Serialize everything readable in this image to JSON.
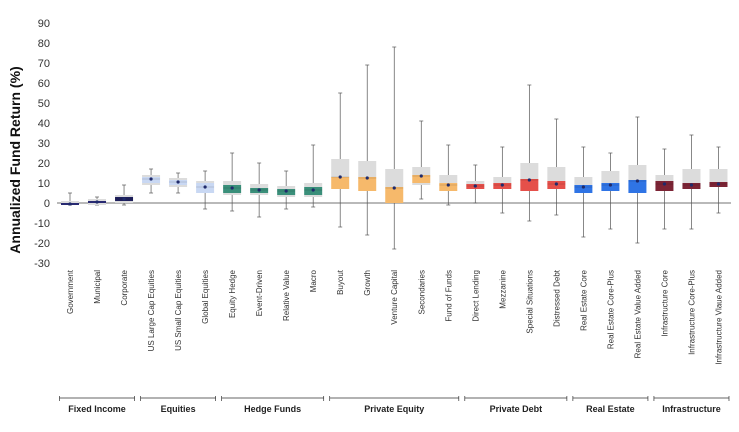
{
  "chart_data": {
    "type": "box",
    "ylabel": "Annualized Fund Return (%)",
    "ylim": [
      -30,
      90
    ],
    "yticks": [
      -30,
      -20,
      -10,
      0,
      10,
      20,
      30,
      40,
      50,
      60,
      70,
      80,
      90
    ],
    "grid": false,
    "categories": [
      {
        "name": "Government",
        "group": "Fixed Income",
        "color": "#2b2d7a",
        "min": -1,
        "lower_decile": -1,
        "q1": -1,
        "median": -0.5,
        "q3": 0,
        "upper_decile": 1,
        "max": 5,
        "mean": -0.5
      },
      {
        "name": "Municipal",
        "group": "Fixed Income",
        "color": "#2b2d7a",
        "min": -1,
        "lower_decile": -1,
        "q1": 0,
        "median": 0.5,
        "q3": 1,
        "upper_decile": 2,
        "max": 3,
        "mean": 0.5
      },
      {
        "name": "Corporate",
        "group": "Fixed Income",
        "color": "#1e1f5c",
        "min": -1,
        "lower_decile": 0,
        "q1": 1,
        "median": 2,
        "q3": 3,
        "upper_decile": 4,
        "max": 9,
        "mean": 2
      },
      {
        "name": "US Large Cap Equities",
        "group": "Equities",
        "color": "#c9d8f3",
        "min": 5,
        "lower_decile": 9,
        "q1": 10,
        "median": 12,
        "q3": 13,
        "upper_decile": 14,
        "max": 17,
        "mean": 12
      },
      {
        "name": "US Small Cap Equities",
        "group": "Equities",
        "color": "#c9d8f3",
        "min": 5,
        "lower_decile": 8,
        "q1": 9,
        "median": 10.5,
        "q3": 11.5,
        "upper_decile": 12.5,
        "max": 15,
        "mean": 10.5
      },
      {
        "name": "Global Equities",
        "group": "Equities",
        "color": "#c9d8f3",
        "min": -3,
        "lower_decile": 5,
        "q1": 5,
        "median": 8,
        "q3": 10,
        "upper_decile": 11,
        "max": 16,
        "mean": 8
      },
      {
        "name": "Equity Hedge",
        "group": "Hedge Funds",
        "color": "#3a8f7a",
        "min": -4,
        "lower_decile": 4,
        "q1": 5,
        "median": 7.5,
        "q3": 9,
        "upper_decile": 11,
        "max": 25,
        "mean": 7.5
      },
      {
        "name": "Event-Driven",
        "group": "Hedge Funds",
        "color": "#3a8f7a",
        "min": -7,
        "lower_decile": 4,
        "q1": 5,
        "median": 6.5,
        "q3": 7.5,
        "upper_decile": 9.5,
        "max": 20,
        "mean": 6.5
      },
      {
        "name": "Relative Value",
        "group": "Hedge Funds",
        "color": "#3a8f7a",
        "min": -3,
        "lower_decile": 3,
        "q1": 4,
        "median": 6,
        "q3": 7,
        "upper_decile": 8.5,
        "max": 16,
        "mean": 6
      },
      {
        "name": "Macro",
        "group": "Hedge Funds",
        "color": "#3a8f7a",
        "min": -2,
        "lower_decile": 3,
        "q1": 4,
        "median": 6.5,
        "q3": 8,
        "upper_decile": 10,
        "max": 29,
        "mean": 6.5
      },
      {
        "name": "Buyout",
        "group": "Private Equity",
        "color": "#f6b96b",
        "min": -12,
        "lower_decile": 7,
        "q1": 7,
        "median": 13,
        "q3": 13,
        "upper_decile": 22,
        "max": 55,
        "mean": 13
      },
      {
        "name": "Growth",
        "group": "Private Equity",
        "color": "#f6b96b",
        "min": -16,
        "lower_decile": 6,
        "q1": 6,
        "median": 12.5,
        "q3": 13,
        "upper_decile": 21,
        "max": 69,
        "mean": 12.5
      },
      {
        "name": "Venture Capital",
        "group": "Private Equity",
        "color": "#f6b96b",
        "min": -23,
        "lower_decile": 0,
        "q1": 0,
        "median": 7.5,
        "q3": 8,
        "upper_decile": 17,
        "max": 78,
        "mean": 7.5
      },
      {
        "name": "Secondaries",
        "group": "Private Equity",
        "color": "#f6b96b",
        "min": 2,
        "lower_decile": 9,
        "q1": 10,
        "median": 13.5,
        "q3": 14,
        "upper_decile": 18,
        "max": 41,
        "mean": 13.5
      },
      {
        "name": "Fund of Funds",
        "group": "Private Equity",
        "color": "#f6b96b",
        "min": -1,
        "lower_decile": 6,
        "q1": 6,
        "median": 9,
        "q3": 10,
        "upper_decile": 14,
        "max": 29,
        "mean": 9
      },
      {
        "name": "Direct Lending",
        "group": "Private Debt",
        "color": "#e5504a",
        "min": 0,
        "lower_decile": 7,
        "q1": 7,
        "median": 8.5,
        "q3": 9.5,
        "upper_decile": 11,
        "max": 19,
        "mean": 8.5
      },
      {
        "name": "Mezzanine",
        "group": "Private Debt",
        "color": "#e5504a",
        "min": -5,
        "lower_decile": 7,
        "q1": 7,
        "median": 9,
        "q3": 10,
        "upper_decile": 13,
        "max": 28,
        "mean": 9
      },
      {
        "name": "Special Situations",
        "group": "Private Debt",
        "color": "#e5504a",
        "min": -9,
        "lower_decile": 6,
        "q1": 6,
        "median": 11.5,
        "q3": 12,
        "upper_decile": 20,
        "max": 59,
        "mean": 11.5
      },
      {
        "name": "Distressed Debt",
        "group": "Private Debt",
        "color": "#e5504a",
        "min": -6,
        "lower_decile": 7,
        "q1": 7,
        "median": 9.5,
        "q3": 11,
        "upper_decile": 18,
        "max": 42,
        "mean": 9.5
      },
      {
        "name": "Real Estate Core",
        "group": "Real Estate",
        "color": "#2f74e5",
        "min": -17,
        "lower_decile": 5,
        "q1": 5,
        "median": 8,
        "q3": 9,
        "upper_decile": 13,
        "max": 28,
        "mean": 8
      },
      {
        "name": "Real Estate Core-Plus",
        "group": "Real Estate",
        "color": "#2f74e5",
        "min": -13,
        "lower_decile": 6,
        "q1": 6,
        "median": 9,
        "q3": 10,
        "upper_decile": 16,
        "max": 25,
        "mean": 9
      },
      {
        "name": "Real Estate Value Added",
        "group": "Real Estate",
        "color": "#2f74e5",
        "min": -20,
        "lower_decile": 5,
        "q1": 5,
        "median": 11,
        "q3": 11.5,
        "upper_decile": 19,
        "max": 43,
        "mean": 11
      },
      {
        "name": "Infrastructure Core",
        "group": "Infrastructure",
        "color": "#7c2435",
        "min": -13,
        "lower_decile": 6,
        "q1": 6,
        "median": 9.5,
        "q3": 11,
        "upper_decile": 14,
        "max": 27,
        "mean": 9.5
      },
      {
        "name": "Infrastructure Core-Plus",
        "group": "Infrastructure",
        "color": "#7c2435",
        "min": -13,
        "lower_decile": 7,
        "q1": 7,
        "median": 9,
        "q3": 10,
        "upper_decile": 17,
        "max": 34,
        "mean": 9
      },
      {
        "name": "Infrastructure Vlaue Added",
        "group": "Infrastructure",
        "color": "#7c2435",
        "min": -5,
        "lower_decile": 8,
        "q1": 8,
        "median": 9.5,
        "q3": 10.5,
        "upper_decile": 17,
        "max": 28,
        "mean": 9.5
      }
    ],
    "groups": [
      "Fixed Income",
      "Equities",
      "Hedge Funds",
      "Private Equity",
      "Private Debt",
      "Real Estate",
      "Infrastructure"
    ],
    "colors": {
      "decile_band": "#dcdcdc",
      "whisker": "#555555",
      "mean_dot": "#1f2a6b",
      "axis": "#444444"
    }
  }
}
